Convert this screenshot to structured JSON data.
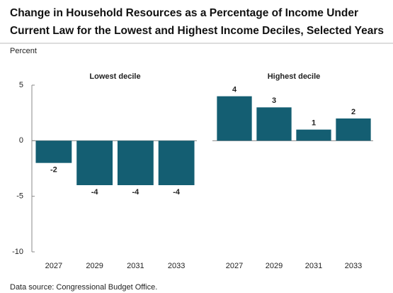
{
  "title": [
    "Change in Household Resources as a Percentage of Income Under",
    "Current Law for the Lowest and Highest Income Deciles, Selected Years"
  ],
  "y_label": "Percent",
  "source": "Data source: Congressional Budget Office.",
  "chart_data": [
    {
      "type": "bar",
      "title": "Lowest decile",
      "categories": [
        "2027",
        "2029",
        "2031",
        "2033"
      ],
      "values": [
        -2,
        -4,
        -4,
        -4
      ],
      "color": "#145e72",
      "ylim": [
        -10,
        5
      ],
      "yticks": [
        -10,
        -5,
        0,
        5
      ]
    },
    {
      "type": "bar",
      "title": "Highest decile",
      "categories": [
        "2027",
        "2029",
        "2031",
        "2033"
      ],
      "values": [
        4,
        3,
        1,
        2
      ],
      "color": "#145e72",
      "ylim": [
        -10,
        5
      ]
    }
  ]
}
